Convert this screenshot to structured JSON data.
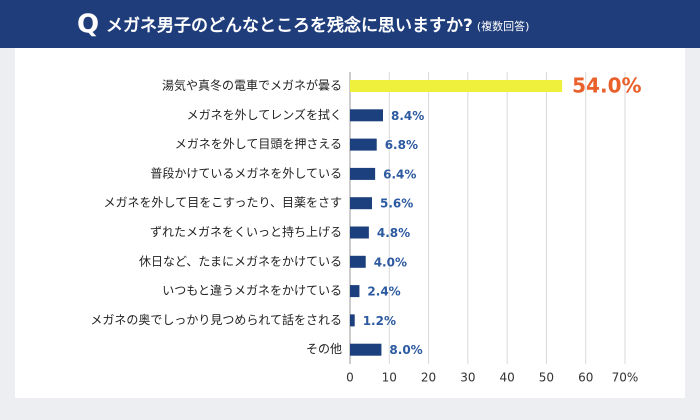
{
  "chart_data": {
    "type": "bar",
    "orientation": "horizontal",
    "question_mark": "Q",
    "title": "メガネ男子のどんなところを残念に思いますか?",
    "title_note": "(複数回答)",
    "categories": [
      "湯気や真冬の電車でメガネが曇る",
      "メガネを外してレンズを拭く",
      "メガネを外して目頭を押さえる",
      "普段かけているメガネを外している",
      "メガネを外して目をこすったり、目薬をさす",
      "ずれたメガネをくいっと持ち上げる",
      "休日など、たまにメガネをかけている",
      "いつもと違うメガネをかけている",
      "メガネの奥でしっかり見つめられて話をされる",
      "その他"
    ],
    "values": [
      54.0,
      8.4,
      6.8,
      6.4,
      5.6,
      4.8,
      4.0,
      2.4,
      1.2,
      8.0
    ],
    "value_labels": [
      "54.0%",
      "8.4%",
      "6.8%",
      "6.4%",
      "5.6%",
      "4.8%",
      "4.0%",
      "2.4%",
      "1.2%",
      "8.0%"
    ],
    "colors": [
      "#eef03c",
      "#1c3f7e",
      "#1c3f7e",
      "#1c3f7e",
      "#1c3f7e",
      "#1c3f7e",
      "#1c3f7e",
      "#1c3f7e",
      "#1c3f7e",
      "#1c3f7e"
    ],
    "label_colors": [
      "#e9602a",
      "#2d5aa0",
      "#2d5aa0",
      "#2d5aa0",
      "#2d5aa0",
      "#2d5aa0",
      "#2d5aa0",
      "#2d5aa0",
      "#2d5aa0",
      "#2d5aa0"
    ],
    "xlim": [
      0,
      70
    ],
    "xticks": [
      0,
      10,
      20,
      30,
      40,
      50,
      60,
      {
        "value": 70,
        "label": "70%"
      }
    ],
    "grid": true
  }
}
